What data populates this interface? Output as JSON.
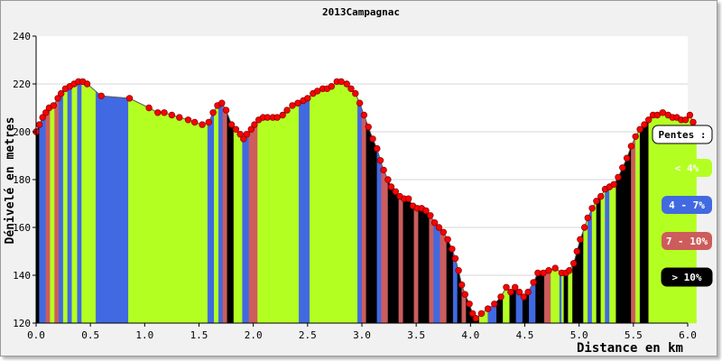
{
  "chart_data": {
    "type": "area",
    "title": "2013Campagnac",
    "xlabel": "Distance en km",
    "ylabel": "Dénivelé en metres",
    "xlim": [
      0,
      6
    ],
    "ylim": [
      120,
      240
    ],
    "x_ticks": [
      "0.0",
      "0.5",
      "1.0",
      "1.5",
      "2.0",
      "2.5",
      "3.0",
      "3.5",
      "4.0",
      "4.5",
      "5.0",
      "5.5",
      "6.0"
    ],
    "y_ticks": [
      "120",
      "140",
      "160",
      "180",
      "200",
      "220",
      "240"
    ],
    "grid": "horizontal",
    "legend": {
      "title": "Pentes :",
      "placement": "right",
      "items": [
        {
          "label": "< 4%",
          "color": "#b4ff22"
        },
        {
          "label": "4 - 7%",
          "color": "#4169e1"
        },
        {
          "label": "7 - 10%",
          "color": "#cd5c5c"
        },
        {
          "label": "> 10%",
          "color": "#000000"
        }
      ]
    },
    "marker_color": "#ff0000",
    "points": [
      [
        0.0,
        200
      ],
      [
        0.03,
        203
      ],
      [
        0.06,
        206
      ],
      [
        0.09,
        208
      ],
      [
        0.12,
        210
      ],
      [
        0.16,
        211
      ],
      [
        0.2,
        214
      ],
      [
        0.23,
        216
      ],
      [
        0.27,
        218
      ],
      [
        0.31,
        219
      ],
      [
        0.35,
        220
      ],
      [
        0.39,
        221
      ],
      [
        0.43,
        221
      ],
      [
        0.47,
        220
      ],
      [
        0.6,
        215
      ],
      [
        0.86,
        214
      ],
      [
        1.04,
        210
      ],
      [
        1.12,
        208
      ],
      [
        1.18,
        208
      ],
      [
        1.25,
        207
      ],
      [
        1.32,
        206
      ],
      [
        1.4,
        205
      ],
      [
        1.46,
        204
      ],
      [
        1.53,
        203
      ],
      [
        1.59,
        204
      ],
      [
        1.63,
        208
      ],
      [
        1.67,
        211
      ],
      [
        1.71,
        212
      ],
      [
        1.75,
        209
      ],
      [
        1.8,
        203
      ],
      [
        1.84,
        201
      ],
      [
        1.88,
        199
      ],
      [
        1.91,
        197
      ],
      [
        1.94,
        199
      ],
      [
        1.98,
        201
      ],
      [
        2.01,
        203
      ],
      [
        2.05,
        205
      ],
      [
        2.09,
        206
      ],
      [
        2.13,
        206
      ],
      [
        2.18,
        206
      ],
      [
        2.22,
        206
      ],
      [
        2.27,
        207
      ],
      [
        2.31,
        209
      ],
      [
        2.36,
        211
      ],
      [
        2.41,
        212
      ],
      [
        2.46,
        213
      ],
      [
        2.5,
        214
      ],
      [
        2.55,
        216
      ],
      [
        2.59,
        217
      ],
      [
        2.64,
        218
      ],
      [
        2.68,
        218
      ],
      [
        2.72,
        219
      ],
      [
        2.77,
        221
      ],
      [
        2.81,
        221
      ],
      [
        2.86,
        220
      ],
      [
        2.9,
        218
      ],
      [
        2.94,
        216
      ],
      [
        2.98,
        212
      ],
      [
        3.02,
        207
      ],
      [
        3.06,
        202
      ],
      [
        3.1,
        197
      ],
      [
        3.14,
        193
      ],
      [
        3.17,
        188
      ],
      [
        3.2,
        184
      ],
      [
        3.24,
        180
      ],
      [
        3.27,
        177
      ],
      [
        3.31,
        175
      ],
      [
        3.35,
        173
      ],
      [
        3.39,
        172
      ],
      [
        3.43,
        172
      ],
      [
        3.47,
        169
      ],
      [
        3.51,
        168
      ],
      [
        3.55,
        168
      ],
      [
        3.59,
        167
      ],
      [
        3.63,
        165
      ],
      [
        3.67,
        162
      ],
      [
        3.71,
        160
      ],
      [
        3.75,
        158
      ],
      [
        3.79,
        155
      ],
      [
        3.83,
        151
      ],
      [
        3.86,
        147
      ],
      [
        3.89,
        142
      ],
      [
        3.92,
        136
      ],
      [
        3.95,
        132
      ],
      [
        3.99,
        128
      ],
      [
        4.02,
        124
      ],
      [
        4.05,
        122
      ],
      [
        4.1,
        124
      ],
      [
        4.16,
        126
      ],
      [
        4.22,
        128
      ],
      [
        4.28,
        131
      ],
      [
        4.33,
        135
      ],
      [
        4.37,
        133
      ],
      [
        4.41,
        135
      ],
      [
        4.45,
        133
      ],
      [
        4.49,
        131
      ],
      [
        4.53,
        133
      ],
      [
        4.58,
        137
      ],
      [
        4.62,
        141
      ],
      [
        4.67,
        141
      ],
      [
        4.72,
        142
      ],
      [
        4.78,
        143
      ],
      [
        4.84,
        141
      ],
      [
        4.88,
        141
      ],
      [
        4.91,
        142
      ],
      [
        4.95,
        145
      ],
      [
        4.98,
        150
      ],
      [
        5.01,
        155
      ],
      [
        5.05,
        160
      ],
      [
        5.08,
        164
      ],
      [
        5.12,
        168
      ],
      [
        5.16,
        171
      ],
      [
        5.2,
        173
      ],
      [
        5.24,
        176
      ],
      [
        5.28,
        177
      ],
      [
        5.32,
        178
      ],
      [
        5.36,
        181
      ],
      [
        5.4,
        185
      ],
      [
        5.44,
        189
      ],
      [
        5.48,
        194
      ],
      [
        5.52,
        198
      ],
      [
        5.56,
        201
      ],
      [
        5.6,
        203
      ],
      [
        5.64,
        205
      ],
      [
        5.68,
        207
      ],
      [
        5.72,
        207
      ],
      [
        5.77,
        208
      ],
      [
        5.82,
        207
      ],
      [
        5.86,
        206
      ],
      [
        5.9,
        206
      ],
      [
        5.94,
        205
      ],
      [
        5.98,
        205
      ],
      [
        6.02,
        207
      ],
      [
        6.05,
        204
      ],
      [
        6.08,
        200
      ]
    ],
    "slope_bands": [
      [
        0.0,
        0.03,
        3
      ],
      [
        0.03,
        0.09,
        1
      ],
      [
        0.09,
        0.13,
        2
      ],
      [
        0.13,
        0.17,
        0
      ],
      [
        0.17,
        0.21,
        2
      ],
      [
        0.21,
        0.25,
        1
      ],
      [
        0.25,
        0.29,
        0
      ],
      [
        0.29,
        0.33,
        1
      ],
      [
        0.33,
        0.38,
        0
      ],
      [
        0.38,
        0.42,
        1
      ],
      [
        0.42,
        0.55,
        0
      ],
      [
        0.55,
        0.85,
        1
      ],
      [
        0.85,
        1.58,
        0
      ],
      [
        1.58,
        1.64,
        1
      ],
      [
        1.64,
        1.68,
        0
      ],
      [
        1.68,
        1.72,
        1
      ],
      [
        1.72,
        1.76,
        2
      ],
      [
        1.76,
        1.82,
        3
      ],
      [
        1.82,
        1.9,
        0
      ],
      [
        1.9,
        1.96,
        1
      ],
      [
        1.96,
        2.04,
        2
      ],
      [
        2.04,
        2.42,
        0
      ],
      [
        2.42,
        2.52,
        1
      ],
      [
        2.52,
        2.96,
        0
      ],
      [
        2.96,
        3.0,
        1
      ],
      [
        3.0,
        3.04,
        2
      ],
      [
        3.04,
        3.14,
        3
      ],
      [
        3.14,
        3.18,
        1
      ],
      [
        3.18,
        3.24,
        2
      ],
      [
        3.24,
        3.34,
        3
      ],
      [
        3.34,
        3.38,
        2
      ],
      [
        3.38,
        3.48,
        3
      ],
      [
        3.48,
        3.52,
        2
      ],
      [
        3.52,
        3.62,
        3
      ],
      [
        3.62,
        3.66,
        2
      ],
      [
        3.66,
        3.72,
        1
      ],
      [
        3.72,
        3.78,
        2
      ],
      [
        3.78,
        3.84,
        3
      ],
      [
        3.84,
        3.88,
        1
      ],
      [
        3.88,
        3.92,
        3
      ],
      [
        3.92,
        3.96,
        2
      ],
      [
        3.96,
        4.08,
        3
      ],
      [
        4.08,
        4.16,
        0
      ],
      [
        4.16,
        4.24,
        1
      ],
      [
        4.24,
        4.3,
        3
      ],
      [
        4.3,
        4.36,
        0
      ],
      [
        4.36,
        4.42,
        3
      ],
      [
        4.42,
        4.48,
        1
      ],
      [
        4.48,
        4.54,
        3
      ],
      [
        4.54,
        4.6,
        1
      ],
      [
        4.6,
        4.68,
        3
      ],
      [
        4.68,
        4.74,
        2
      ],
      [
        4.74,
        4.82,
        0
      ],
      [
        4.82,
        4.84,
        1
      ],
      [
        4.84,
        4.86,
        0
      ],
      [
        4.86,
        4.9,
        3
      ],
      [
        4.9,
        4.94,
        0
      ],
      [
        4.94,
        5.04,
        3
      ],
      [
        5.04,
        5.08,
        0
      ],
      [
        5.08,
        5.12,
        1
      ],
      [
        5.12,
        5.16,
        0
      ],
      [
        5.16,
        5.2,
        3
      ],
      [
        5.2,
        5.24,
        0
      ],
      [
        5.24,
        5.28,
        1
      ],
      [
        5.28,
        5.34,
        0
      ],
      [
        5.34,
        5.48,
        3
      ],
      [
        5.48,
        5.52,
        2
      ],
      [
        5.52,
        5.56,
        0
      ],
      [
        5.56,
        5.64,
        3
      ],
      [
        5.64,
        6.08,
        0
      ]
    ]
  }
}
